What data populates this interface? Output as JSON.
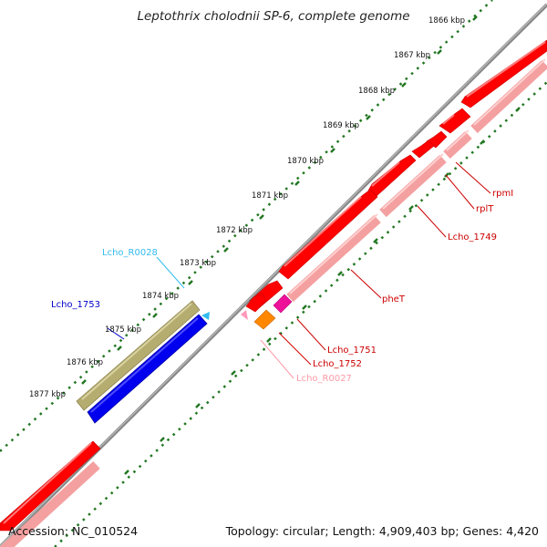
{
  "map": {
    "title": "Leptothrix cholodnii SP-6, complete genome",
    "accession": "Accession: NC_010524",
    "summary": "Topology: circular; Length: 4,909,403 bp; Genes: 4,420"
  },
  "ticks": [
    {
      "label": "1866 kbp"
    },
    {
      "label": "1867 kbp"
    },
    {
      "label": "1868 kbp"
    },
    {
      "label": "1869 kbp"
    },
    {
      "label": "1870 kbp"
    },
    {
      "label": "1871 kbp"
    },
    {
      "label": "1872 kbp"
    },
    {
      "label": "1873 kbp"
    },
    {
      "label": "1874 kbp"
    },
    {
      "label": "1875 kbp"
    },
    {
      "label": "1876 kbp"
    },
    {
      "label": "1877 kbp"
    }
  ],
  "features": [
    {
      "label": "rpmI",
      "color": "#cc0000"
    },
    {
      "label": "rplT",
      "color": "#cc0000"
    },
    {
      "label": "Lcho_1749",
      "color": "#cc0000"
    },
    {
      "label": "pheT",
      "color": "#cc0000"
    },
    {
      "label": "Lcho_1751",
      "color": "#cc0000"
    },
    {
      "label": "Lcho_1752",
      "color": "#cc0000"
    },
    {
      "label": "Lcho_R0027",
      "color": "#ff9aa6"
    },
    {
      "label": "Lcho_R0028",
      "color": "#33bbee"
    },
    {
      "label": "Lcho_1753",
      "color": "#0000cc"
    }
  ],
  "colors": {
    "backbone": "#888888",
    "cds_forward": "#ff0000",
    "cds_forward_shadow": "#f4a0a0",
    "cds_reverse": "#0000ee",
    "rrna": "#b5ac70",
    "trna_orange": "#ff8800",
    "trna_magenta": "#ee1199",
    "tick_mark": "#227722"
  }
}
